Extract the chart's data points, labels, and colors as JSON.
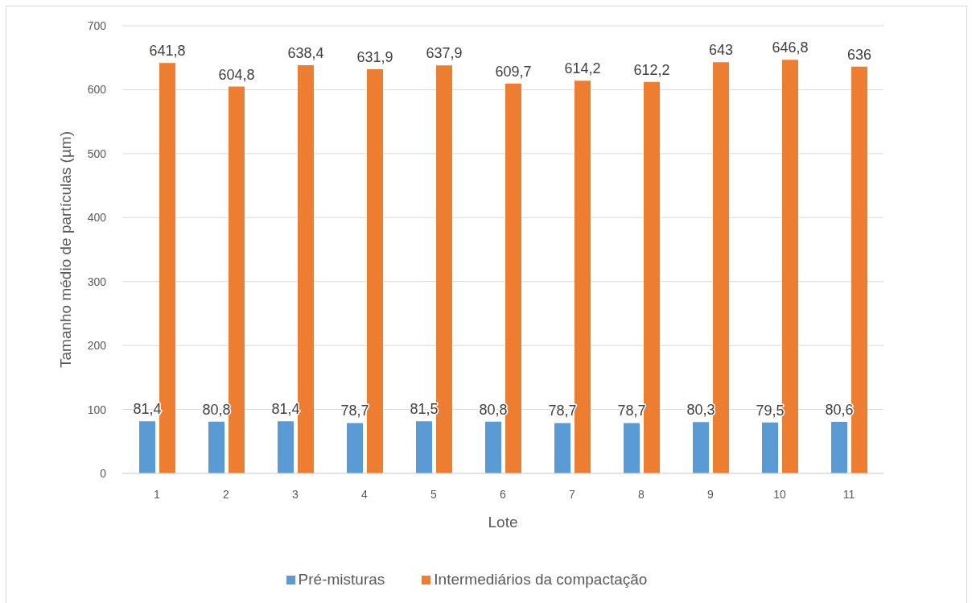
{
  "chart_data": {
    "type": "bar",
    "xlabel": "Lote",
    "ylabel": "Tamanho médio de partículas (µm)",
    "categories": [
      "1",
      "2",
      "3",
      "4",
      "5",
      "6",
      "7",
      "8",
      "9",
      "10",
      "11"
    ],
    "series": [
      {
        "name": "Pré-misturas",
        "color": "#5b9bd5",
        "values": [
          81.4,
          80.8,
          81.4,
          78.7,
          81.5,
          80.8,
          78.7,
          78.7,
          80.3,
          79.5,
          80.6
        ],
        "value_labels": [
          "81,4",
          "80,8",
          "81,4",
          "78,7",
          "81,5",
          "80,8",
          "78,7",
          "78,7",
          "80,3",
          "79,5",
          "80,6"
        ]
      },
      {
        "name": "Intermediários da compactação",
        "color": "#ed7d31",
        "values": [
          641.8,
          604.8,
          638.4,
          631.9,
          637.9,
          609.7,
          614.2,
          612.2,
          643,
          646.8,
          636
        ],
        "value_labels": [
          "641,8",
          "604,8",
          "638,4",
          "631,9",
          "637,9",
          "609,7",
          "614,2",
          "612,2",
          "643",
          "646,8",
          "636"
        ]
      }
    ],
    "ylim": [
      0,
      700
    ],
    "yticks": [
      0,
      100,
      200,
      300,
      400,
      500,
      600,
      700
    ],
    "grid": "y",
    "legend": "bottom"
  }
}
